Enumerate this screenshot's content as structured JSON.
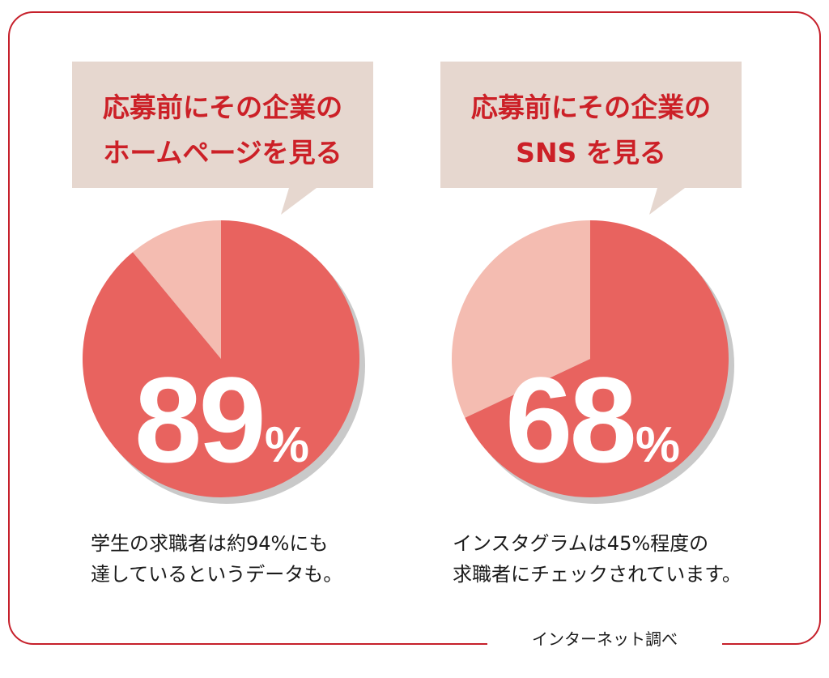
{
  "chart_data": [
    {
      "type": "pie",
      "title_lines": [
        "応募前にその企業の",
        "ホームページを見る"
      ],
      "value": 89,
      "value_label": "89",
      "unit": "%",
      "slices": [
        {
          "value": 89,
          "color": "#e8635f"
        },
        {
          "value": 11,
          "color": "#f4bcb1"
        }
      ],
      "caption_lines": [
        "学生の求職者は約94%にも",
        "達しているというデータも。"
      ]
    },
    {
      "type": "pie",
      "title_lines": [
        "応募前にその企業の",
        "SNS を見る"
      ],
      "value": 68,
      "value_label": "68",
      "unit": "%",
      "slices": [
        {
          "value": 68,
          "color": "#e8635f"
        },
        {
          "value": 32,
          "color": "#f4bcb1"
        }
      ],
      "caption_lines": [
        "インスタグラムは45%程度の",
        "求職者にチェックされています。"
      ]
    }
  ],
  "source_note": "インターネット調べ",
  "colors": {
    "frame": "#c6202b",
    "callout_bg": "#e6d7cf",
    "title_text": "#cc2027",
    "shadow": "#c9c9c9"
  }
}
